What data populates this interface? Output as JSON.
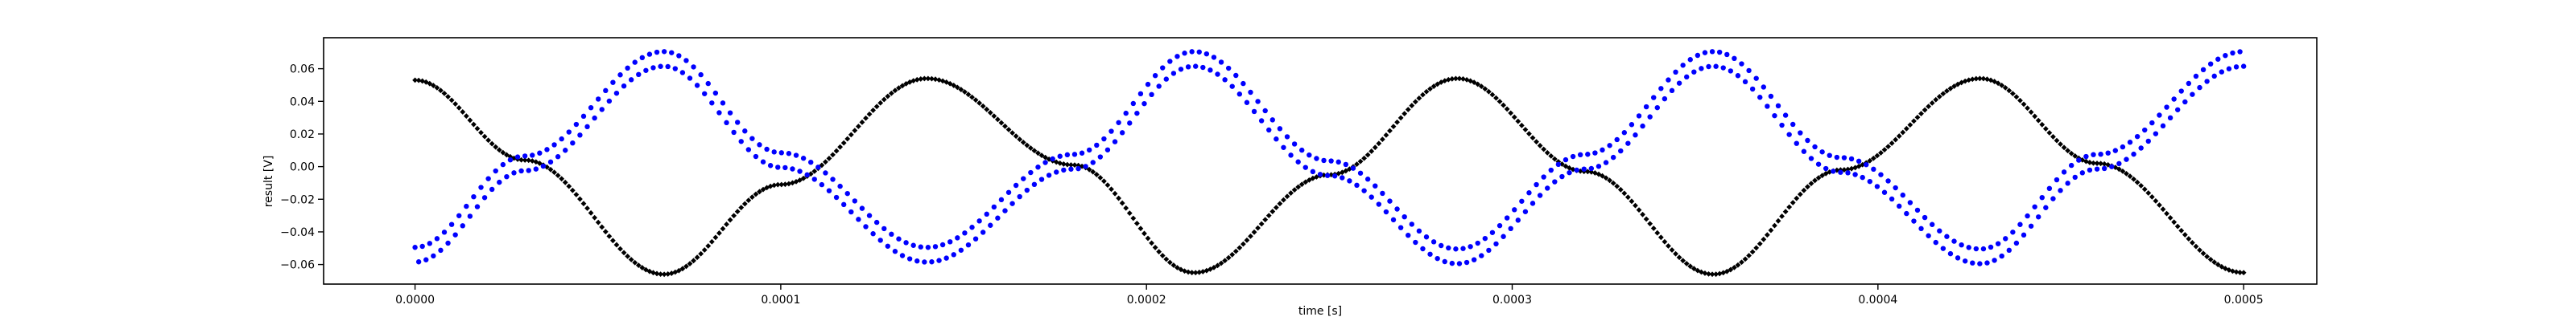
{
  "chart_data": {
    "type": "scatter",
    "title": "",
    "xlabel": "time [s]",
    "ylabel": "result [V]",
    "xlim": [
      -2.5e-05,
      0.00052
    ],
    "ylim": [
      -0.072,
      0.079
    ],
    "grid": false,
    "x_ticks": [
      0,
      0.0001,
      0.0002,
      0.0003,
      0.0004,
      0.0005
    ],
    "x_tick_labels": [
      "0.0000",
      "0.0001",
      "0.0002",
      "0.0003",
      "0.0004",
      "0.0005"
    ],
    "y_ticks": [
      -0.06,
      -0.04,
      -0.02,
      0.0,
      0.02,
      0.04,
      0.06
    ],
    "y_tick_labels": [
      "−0.06",
      "−0.04",
      "−0.02",
      "0.00",
      "0.02",
      "0.04",
      "0.06"
    ],
    "series": [
      {
        "color": "#000000",
        "marker": "diamond",
        "x_start": 0,
        "x_end": 0.0005,
        "n_points": 500,
        "x": [
          0,
          3e-05,
          6.8e-05,
          0.0001,
          0.00014,
          0.00018,
          0.000213,
          0.00025,
          0.000285,
          0.00032,
          0.000355,
          0.00039,
          0.000428,
          0.00046,
          0.0005
        ],
        "y": [
          0.053,
          0.004,
          -0.066,
          -0.011,
          0.054,
          0.001,
          -0.065,
          -0.005,
          0.054,
          -0.003,
          -0.066,
          -0.002,
          0.054,
          0.002,
          -0.065
        ]
      },
      {
        "color": "#0000ff",
        "marker": "dot",
        "x_start": 0,
        "x_end": 0.0005,
        "n_points": 500,
        "band_offset": 0.009,
        "x": [
          0,
          3e-05,
          6.8e-05,
          0.0001,
          0.00014,
          0.00018,
          0.000213,
          0.00025,
          0.000285,
          0.00032,
          0.000355,
          0.00039,
          0.000428,
          0.00046,
          0.0005
        ],
        "y": [
          -0.054,
          0.002,
          0.066,
          0.004,
          -0.054,
          0.003,
          0.066,
          -0.001,
          -0.055,
          0.003,
          0.066,
          0.001,
          -0.055,
          0.003,
          0.066
        ]
      }
    ]
  }
}
